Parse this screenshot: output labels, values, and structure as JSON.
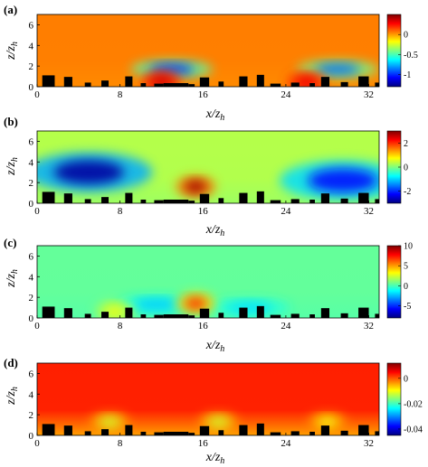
{
  "colors": {
    "colormap": [
      "#00007f",
      "#0000ff",
      "#007fff",
      "#00ffff",
      "#7fff7f",
      "#ffff00",
      "#ff7f00",
      "#ff0000",
      "#7f0000"
    ],
    "buildings": "#000000",
    "background": "#ffffff"
  },
  "chart_data": [
    {
      "type": "heatmap",
      "panel_label": "(a)",
      "xlabel": "x/z_h",
      "ylabel": "z/z_h",
      "x_ticks": [
        "0",
        "8",
        "16",
        "24",
        "32"
      ],
      "y_ticks": [
        "0",
        "2",
        "4",
        "6"
      ],
      "xlim": [
        0,
        33
      ],
      "ylim": [
        0,
        7
      ],
      "colorbar": {
        "ticks": [
          "0",
          "-0.5",
          "-1"
        ],
        "tick_values": [
          0,
          -0.5,
          -1
        ],
        "range": [
          -1.3,
          0.5
        ]
      },
      "base_value": 0.05,
      "features": [
        {
          "kind": "low",
          "x": 13,
          "z": 1.7,
          "value": -1.0
        },
        {
          "kind": "low",
          "x": 29,
          "z": 1.7,
          "value": -0.9
        },
        {
          "kind": "high",
          "x": 12,
          "z": 0.5,
          "value": 0.35
        },
        {
          "kind": "high",
          "x": 26,
          "z": 0.4,
          "value": 0.3
        }
      ]
    },
    {
      "type": "heatmap",
      "panel_label": "(b)",
      "xlabel": "x/z_h",
      "ylabel": "z/z_h",
      "x_ticks": [
        "0",
        "8",
        "16",
        "24",
        "32"
      ],
      "y_ticks": [
        "0",
        "2",
        "4",
        "6"
      ],
      "xlim": [
        0,
        33
      ],
      "ylim": [
        0,
        7
      ],
      "colorbar": {
        "ticks": [
          "2",
          "0",
          "-2"
        ],
        "tick_values": [
          2,
          0,
          -2
        ],
        "range": [
          -3,
          3
        ]
      },
      "base_value": 0.3,
      "features": [
        {
          "kind": "low",
          "x": 5,
          "z": 3.0,
          "value": -2.8
        },
        {
          "kind": "low",
          "x": 29.5,
          "z": 2.2,
          "value": -2.2
        },
        {
          "kind": "high",
          "x": 15.3,
          "z": 1.6,
          "value": 2.8
        }
      ]
    },
    {
      "type": "heatmap",
      "panel_label": "(c)",
      "xlabel": "x/z_h",
      "ylabel": "z/z_h",
      "x_ticks": [
        "0",
        "8",
        "16",
        "24",
        "32"
      ],
      "y_ticks": [
        "0",
        "2",
        "4",
        "6"
      ],
      "xlim": [
        0,
        33
      ],
      "ylim": [
        0,
        7
      ],
      "colorbar": {
        "ticks": [
          "10",
          "5",
          "0",
          "-5"
        ],
        "tick_values": [
          10,
          5,
          0,
          -5
        ],
        "range": [
          -8,
          10
        ]
      },
      "base_value": 0.5,
      "features": [
        {
          "kind": "low",
          "x": 11.5,
          "z": 1.3,
          "value": -2.2
        },
        {
          "kind": "low",
          "x": 20.5,
          "z": 1.0,
          "value": -1.8
        },
        {
          "kind": "high",
          "x": 15.3,
          "z": 1.4,
          "value": 7.0
        },
        {
          "kind": "high",
          "x": 7.5,
          "z": 0.6,
          "value": 3.0
        }
      ]
    },
    {
      "type": "heatmap",
      "panel_label": "(d)",
      "xlabel": "x/z_h",
      "ylabel": "z/z_h",
      "x_ticks": [
        "0",
        "8",
        "16",
        "24",
        "32"
      ],
      "y_ticks": [
        "0",
        "2",
        "4",
        "6"
      ],
      "xlim": [
        0,
        33
      ],
      "ylim": [
        0,
        7
      ],
      "colorbar": {
        "ticks": [
          "0",
          "-0.02",
          "-0.04"
        ],
        "tick_values": [
          0,
          -0.02,
          -0.04
        ],
        "range": [
          -0.045,
          0.012
        ]
      },
      "base_value": 0.003,
      "features": [
        {
          "kind": "low",
          "x": 7,
          "z": 1.3,
          "value": -0.012
        },
        {
          "kind": "low",
          "x": 17.5,
          "z": 1.3,
          "value": -0.012
        },
        {
          "kind": "low",
          "x": 28,
          "z": 1.3,
          "value": -0.01
        }
      ]
    }
  ],
  "buildings": [
    {
      "x0": 0.5,
      "x1": 1.7,
      "h": 1.1
    },
    {
      "x0": 2.6,
      "x1": 3.4,
      "h": 0.95
    },
    {
      "x0": 4.6,
      "x1": 5.2,
      "h": 0.4
    },
    {
      "x0": 6.2,
      "x1": 6.9,
      "h": 0.6
    },
    {
      "x0": 8.5,
      "x1": 9.2,
      "h": 1.0
    },
    {
      "x0": 10.0,
      "x1": 10.5,
      "h": 0.35
    },
    {
      "x0": 11.3,
      "x1": 12.2,
      "h": 0.3
    },
    {
      "x0": 12.2,
      "x1": 14.6,
      "h": 0.35
    },
    {
      "x0": 14.6,
      "x1": 15.2,
      "h": 0.25
    },
    {
      "x0": 15.7,
      "x1": 16.6,
      "h": 0.9
    },
    {
      "x0": 17.5,
      "x1": 18.0,
      "h": 0.5
    },
    {
      "x0": 19.5,
      "x1": 20.3,
      "h": 1.0
    },
    {
      "x0": 21.2,
      "x1": 21.9,
      "h": 1.15
    },
    {
      "x0": 22.5,
      "x1": 23.5,
      "h": 0.3
    },
    {
      "x0": 24.5,
      "x1": 25.3,
      "h": 0.4
    },
    {
      "x0": 26.3,
      "x1": 26.8,
      "h": 0.35
    },
    {
      "x0": 27.4,
      "x1": 28.2,
      "h": 0.95
    },
    {
      "x0": 29.3,
      "x1": 30.0,
      "h": 0.45
    },
    {
      "x0": 31.0,
      "x1": 32.0,
      "h": 1.0
    },
    {
      "x0": 32.6,
      "x1": 33.0,
      "h": 0.4
    }
  ]
}
